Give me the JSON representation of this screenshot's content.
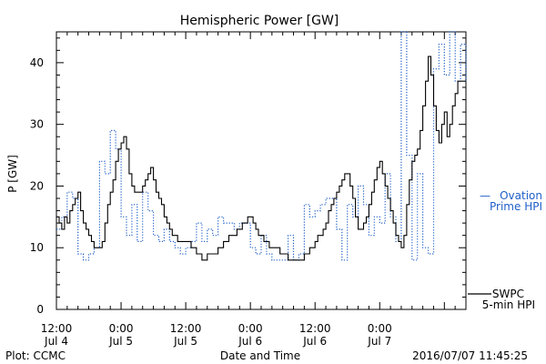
{
  "chart_data": {
    "type": "line",
    "title": "Hemispheric Power [GW]",
    "ylabel": "P [GW]",
    "xlabel": "Date and Time",
    "ylim": [
      0,
      45
    ],
    "xlim": [
      0,
      76
    ],
    "x_unit": "hours since Jul 4 12:00",
    "yticks": [
      0,
      10,
      20,
      30,
      40
    ],
    "xticks": [
      {
        "x": 0,
        "line1": "12:00",
        "line2": "Jul 4"
      },
      {
        "x": 12,
        "line1": "0:00",
        "line2": "Jul 5"
      },
      {
        "x": 24,
        "line1": "12:00",
        "line2": "Jul 5"
      },
      {
        "x": 36,
        "line1": "0:00",
        "line2": "Jul 6"
      },
      {
        "x": 48,
        "line1": "12:00",
        "line2": "Jul 6"
      },
      {
        "x": 60,
        "line1": "0:00",
        "line2": "Jul 7"
      }
    ],
    "grid": false,
    "footer_left": "Plot: CCMC",
    "footer_right": "2016/07/07 11:45:25",
    "legend": {
      "ovation_line1": "Ovation",
      "ovation_line2": "Prime HPI",
      "swpc_line1": "SWPC",
      "swpc_line2": "5-min HPI",
      "dash": "—"
    },
    "series": [
      {
        "name": "SWPC 5-min HPI",
        "color": "#000000",
        "style": "solid",
        "x": [
          0,
          0.5,
          1,
          1.5,
          2,
          2.5,
          3,
          3.5,
          4,
          4.5,
          5,
          5.5,
          6,
          6.5,
          7,
          7.5,
          8,
          8.5,
          9,
          9.5,
          10,
          10.5,
          11,
          11.5,
          12,
          12.5,
          13,
          13.5,
          14,
          14.5,
          15,
          15.5,
          16,
          16.5,
          17,
          17.5,
          18,
          18.5,
          19,
          19.5,
          20,
          20.5,
          21,
          21.5,
          22,
          22.5,
          23,
          23.5,
          24,
          24.5,
          25,
          25.5,
          26,
          26.5,
          27,
          27.5,
          28,
          28.5,
          29,
          29.5,
          30,
          30.5,
          31,
          31.5,
          32,
          32.5,
          33,
          33.5,
          34,
          34.5,
          35,
          35.5,
          36,
          36.5,
          37,
          37.5,
          38,
          38.5,
          39,
          39.5,
          40,
          40.5,
          41,
          41.5,
          42,
          42.5,
          43,
          43.5,
          44,
          44.5,
          45,
          45.5,
          46,
          46.5,
          47,
          47.5,
          48,
          48.5,
          49,
          49.5,
          50,
          50.5,
          51,
          51.5,
          52,
          52.5,
          53,
          53.5,
          54,
          54.5,
          55,
          55.5,
          56,
          56.5,
          57,
          57.5,
          58,
          58.5,
          59,
          59.5,
          60,
          60.5,
          61,
          61.5,
          62,
          62.5,
          63,
          63.5,
          64,
          64.5,
          65,
          65.5,
          66,
          66.5,
          67,
          67.5,
          68,
          68.5,
          69,
          69.5,
          70,
          70.5,
          71,
          71.5,
          72,
          72.5,
          73,
          73.5,
          74,
          74.5,
          75,
          75.5,
          76
        ],
        "y": [
          15,
          14,
          13,
          15,
          14,
          16,
          17,
          18,
          19,
          16,
          14,
          13,
          12,
          11,
          10,
          10,
          10,
          11,
          14,
          17,
          19,
          21,
          24,
          26,
          27,
          28,
          26,
          22,
          20,
          19,
          19,
          19,
          20,
          21,
          22,
          23,
          21,
          19,
          18,
          17,
          15,
          14,
          13,
          12,
          12,
          11,
          11,
          11,
          11,
          11,
          10,
          10,
          9,
          9,
          8,
          8,
          9,
          9,
          9,
          9,
          10,
          10,
          11,
          11,
          12,
          12,
          12,
          13,
          13,
          14,
          14,
          15,
          15,
          14,
          13,
          12,
          12,
          11,
          11,
          10,
          10,
          10,
          10,
          9,
          9,
          9,
          8,
          8,
          8,
          8,
          8,
          8,
          9,
          9,
          10,
          10,
          11,
          12,
          12,
          13,
          14,
          16,
          17,
          18,
          19,
          20,
          21,
          22,
          22,
          20,
          18,
          15,
          13,
          13,
          14,
          15,
          17,
          19,
          21,
          23,
          24,
          22,
          20,
          18,
          16,
          14,
          12,
          11,
          10,
          12,
          17,
          21,
          24,
          25,
          26,
          29,
          33,
          37,
          41,
          38,
          33,
          29,
          27,
          30,
          32,
          28,
          30,
          33,
          35,
          37,
          37,
          37,
          37
        ]
      },
      {
        "name": "Ovation Prime HPI",
        "color": "#1f5fc8",
        "style": "dotted",
        "x": [
          0,
          1,
          2,
          3,
          4,
          5,
          6,
          7,
          8,
          9,
          10,
          11,
          12,
          13,
          14,
          15,
          16,
          17,
          18,
          19,
          20,
          21,
          22,
          23,
          24,
          25,
          26,
          27,
          28,
          29,
          30,
          31,
          32,
          33,
          34,
          35,
          36,
          37,
          38,
          39,
          40,
          41,
          42,
          43,
          44,
          45,
          46,
          47,
          48,
          49,
          50,
          51,
          52,
          53,
          54,
          55,
          56,
          57,
          58,
          59,
          60,
          61,
          62,
          63,
          64,
          65,
          66,
          67,
          68,
          69,
          70,
          71,
          72,
          73,
          74,
          75,
          76
        ],
        "y": [
          13,
          15,
          19,
          18,
          9,
          8,
          9,
          10,
          24,
          22,
          29,
          26,
          15,
          12,
          17,
          11,
          19,
          16,
          12,
          11,
          13,
          11,
          10,
          9,
          10,
          11,
          14,
          11,
          13,
          12,
          15,
          14,
          14,
          13,
          14,
          14,
          10,
          9,
          12,
          9,
          8,
          8,
          8,
          12,
          8,
          9,
          17,
          15,
          16,
          17,
          18,
          18,
          13,
          8,
          17,
          15,
          20,
          17,
          12,
          15,
          14,
          22,
          15,
          11,
          45,
          25,
          8,
          22,
          10,
          9,
          39,
          43,
          38,
          45,
          37,
          43,
          37
        ]
      }
    ]
  }
}
